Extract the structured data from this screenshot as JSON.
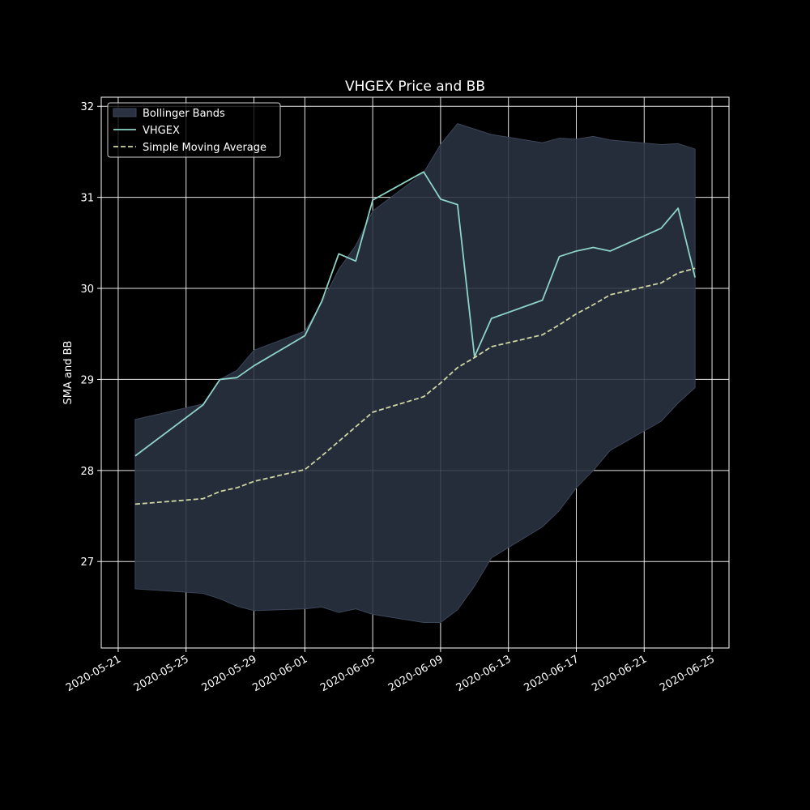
{
  "chart_data": {
    "type": "line",
    "title": "VHGEX Price and BB",
    "xlabel": "",
    "ylabel": "SMA and BB",
    "x_range": [
      "2020-05-20",
      "2020-06-26"
    ],
    "ylim": [
      26.05,
      32.1
    ],
    "x_ticks": [
      "2020-05-21",
      "2020-05-25",
      "2020-05-29",
      "2020-06-01",
      "2020-06-05",
      "2020-06-09",
      "2020-06-13",
      "2020-06-17",
      "2020-06-21",
      "2020-06-25"
    ],
    "y_ticks": [
      27,
      28,
      29,
      30,
      31,
      32
    ],
    "grid": true,
    "legend_position": "top-left",
    "dates": [
      "2020-05-22",
      "2020-05-26",
      "2020-05-27",
      "2020-05-28",
      "2020-05-29",
      "2020-06-01",
      "2020-06-02",
      "2020-06-03",
      "2020-06-04",
      "2020-06-05",
      "2020-06-08",
      "2020-06-09",
      "2020-06-10",
      "2020-06-11",
      "2020-06-12",
      "2020-06-15",
      "2020-06-16",
      "2020-06-17",
      "2020-06-18",
      "2020-06-19",
      "2020-06-22",
      "2020-06-23",
      "2020-06-24"
    ],
    "series": [
      {
        "name": "VHGEX",
        "color": "#8dd3c7",
        "style": "solid",
        "values": [
          28.16,
          28.72,
          29.0,
          29.02,
          29.15,
          29.48,
          29.86,
          30.38,
          30.3,
          30.97,
          31.28,
          30.98,
          30.92,
          29.25,
          29.67,
          29.87,
          30.35,
          30.41,
          30.45,
          30.41,
          30.66,
          30.88,
          30.12
        ]
      },
      {
        "name": "Simple Moving Average",
        "color": "#cfd6a4",
        "style": "dashed",
        "values": [
          27.63,
          27.69,
          27.77,
          27.81,
          27.88,
          28.01,
          28.16,
          28.32,
          28.48,
          28.64,
          28.81,
          28.96,
          29.13,
          29.24,
          29.36,
          29.49,
          29.6,
          29.72,
          29.82,
          29.93,
          30.06,
          30.17,
          30.22
        ]
      }
    ],
    "bands": {
      "name": "Bollinger Bands",
      "color": "#2a3242",
      "upper": [
        28.56,
        28.73,
        29.0,
        29.1,
        29.32,
        29.53,
        29.84,
        30.21,
        30.47,
        30.85,
        31.27,
        31.58,
        31.81,
        31.75,
        31.69,
        31.6,
        31.65,
        31.64,
        31.67,
        31.63,
        31.58,
        31.59,
        31.53
      ],
      "lower": [
        26.7,
        26.65,
        26.59,
        26.51,
        26.46,
        26.48,
        26.5,
        26.44,
        26.48,
        26.42,
        26.33,
        26.33,
        26.47,
        26.73,
        27.04,
        27.38,
        27.56,
        27.81,
        28.0,
        28.22,
        28.54,
        28.74,
        28.91
      ]
    }
  }
}
